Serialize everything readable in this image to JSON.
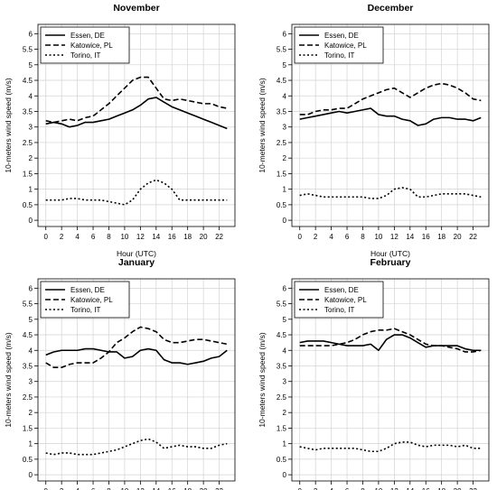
{
  "xlabel": "Hour (UTC)",
  "ylabel": "10-meters wind speed (m/s)",
  "xticks": [
    0,
    2,
    4,
    6,
    8,
    10,
    12,
    14,
    16,
    18,
    20,
    22
  ],
  "yticks": [
    0,
    0.5,
    1,
    1.5,
    2,
    2.5,
    3,
    3.5,
    4,
    4.5,
    5,
    5.5,
    6
  ],
  "xlim": [
    -1,
    24
  ],
  "ylim": [
    -0.2,
    6.3
  ],
  "legend_placement": "top-left",
  "colors": {
    "line": "#000000",
    "grid": "#d3d3d3"
  },
  "chart_data": [
    {
      "type": "line",
      "title": "November",
      "x": [
        0,
        1,
        2,
        3,
        4,
        5,
        6,
        7,
        8,
        9,
        10,
        11,
        12,
        13,
        14,
        15,
        16,
        17,
        18,
        19,
        20,
        21,
        22,
        23
      ],
      "series": [
        {
          "name": "Essen, DE",
          "style": "solid",
          "values": [
            3.1,
            3.15,
            3.1,
            3.0,
            3.05,
            3.15,
            3.15,
            3.2,
            3.25,
            3.35,
            3.45,
            3.55,
            3.7,
            3.9,
            3.95,
            3.8,
            3.65,
            3.55,
            3.45,
            3.35,
            3.25,
            3.15,
            3.05,
            2.95
          ]
        },
        {
          "name": "Katowice, PL",
          "style": "dashed",
          "values": [
            3.2,
            3.15,
            3.2,
            3.25,
            3.2,
            3.3,
            3.35,
            3.55,
            3.75,
            4.0,
            4.25,
            4.5,
            4.6,
            4.6,
            4.25,
            3.9,
            3.85,
            3.9,
            3.85,
            3.8,
            3.75,
            3.75,
            3.65,
            3.6
          ]
        },
        {
          "name": "Torino, IT",
          "style": "dotted",
          "values": [
            0.65,
            0.65,
            0.65,
            0.7,
            0.7,
            0.65,
            0.65,
            0.65,
            0.6,
            0.55,
            0.5,
            0.65,
            1.0,
            1.2,
            1.3,
            1.2,
            1.0,
            0.65,
            0.65,
            0.65,
            0.65,
            0.65,
            0.65,
            0.65
          ]
        }
      ]
    },
    {
      "type": "line",
      "title": "December",
      "x": [
        0,
        1,
        2,
        3,
        4,
        5,
        6,
        7,
        8,
        9,
        10,
        11,
        12,
        13,
        14,
        15,
        16,
        17,
        18,
        19,
        20,
        21,
        22,
        23
      ],
      "series": [
        {
          "name": "Essen, DE",
          "style": "solid",
          "values": [
            3.25,
            3.3,
            3.35,
            3.4,
            3.45,
            3.5,
            3.45,
            3.5,
            3.55,
            3.6,
            3.4,
            3.35,
            3.35,
            3.25,
            3.2,
            3.05,
            3.1,
            3.25,
            3.3,
            3.3,
            3.25,
            3.25,
            3.2,
            3.3
          ]
        },
        {
          "name": "Katowice, PL",
          "style": "dashed",
          "values": [
            3.4,
            3.4,
            3.5,
            3.55,
            3.55,
            3.6,
            3.6,
            3.75,
            3.9,
            4.0,
            4.1,
            4.2,
            4.25,
            4.1,
            3.95,
            4.1,
            4.25,
            4.35,
            4.4,
            4.35,
            4.25,
            4.1,
            3.9,
            3.85
          ]
        },
        {
          "name": "Torino, IT",
          "style": "dotted",
          "values": [
            0.8,
            0.85,
            0.8,
            0.75,
            0.75,
            0.75,
            0.75,
            0.75,
            0.75,
            0.7,
            0.7,
            0.8,
            1.0,
            1.05,
            1.0,
            0.75,
            0.75,
            0.8,
            0.85,
            0.85,
            0.85,
            0.85,
            0.8,
            0.75
          ]
        }
      ]
    },
    {
      "type": "line",
      "title": "January",
      "x": [
        0,
        1,
        2,
        3,
        4,
        5,
        6,
        7,
        8,
        9,
        10,
        11,
        12,
        13,
        14,
        15,
        16,
        17,
        18,
        19,
        20,
        21,
        22,
        23
      ],
      "series": [
        {
          "name": "Essen, DE",
          "style": "solid",
          "values": [
            3.85,
            3.95,
            4.0,
            4.0,
            4.0,
            4.05,
            4.05,
            4.0,
            3.95,
            3.95,
            3.75,
            3.8,
            4.0,
            4.05,
            4.0,
            3.7,
            3.6,
            3.6,
            3.55,
            3.6,
            3.65,
            3.75,
            3.8,
            4.0
          ]
        },
        {
          "name": "Katowice, PL",
          "style": "dashed",
          "values": [
            3.6,
            3.45,
            3.45,
            3.55,
            3.6,
            3.6,
            3.6,
            3.75,
            3.95,
            4.25,
            4.4,
            4.6,
            4.75,
            4.7,
            4.6,
            4.35,
            4.25,
            4.25,
            4.3,
            4.35,
            4.35,
            4.3,
            4.25,
            4.2
          ]
        },
        {
          "name": "Torino, IT",
          "style": "dotted",
          "values": [
            0.7,
            0.65,
            0.7,
            0.7,
            0.65,
            0.65,
            0.65,
            0.7,
            0.75,
            0.8,
            0.9,
            1.0,
            1.1,
            1.15,
            1.05,
            0.85,
            0.9,
            0.95,
            0.9,
            0.9,
            0.85,
            0.85,
            0.95,
            1.0
          ]
        }
      ]
    },
    {
      "type": "line",
      "title": "February",
      "x": [
        0,
        1,
        2,
        3,
        4,
        5,
        6,
        7,
        8,
        9,
        10,
        11,
        12,
        13,
        14,
        15,
        16,
        17,
        18,
        19,
        20,
        21,
        22,
        23
      ],
      "series": [
        {
          "name": "Essen, DE",
          "style": "solid",
          "values": [
            4.25,
            4.3,
            4.3,
            4.3,
            4.25,
            4.2,
            4.15,
            4.15,
            4.15,
            4.2,
            4.0,
            4.35,
            4.5,
            4.5,
            4.4,
            4.25,
            4.1,
            4.15,
            4.15,
            4.15,
            4.15,
            4.05,
            4.0,
            4.0
          ]
        },
        {
          "name": "Katowice, PL",
          "style": "dashed",
          "values": [
            4.15,
            4.15,
            4.15,
            4.15,
            4.15,
            4.2,
            4.25,
            4.35,
            4.5,
            4.6,
            4.65,
            4.65,
            4.7,
            4.6,
            4.5,
            4.35,
            4.2,
            4.15,
            4.15,
            4.1,
            4.05,
            3.95,
            3.95,
            4.0
          ]
        },
        {
          "name": "Torino, IT",
          "style": "dotted",
          "values": [
            0.9,
            0.85,
            0.8,
            0.85,
            0.85,
            0.85,
            0.85,
            0.85,
            0.8,
            0.75,
            0.75,
            0.85,
            1.0,
            1.05,
            1.05,
            0.95,
            0.9,
            0.95,
            0.95,
            0.95,
            0.9,
            0.95,
            0.85,
            0.85
          ]
        }
      ]
    }
  ]
}
